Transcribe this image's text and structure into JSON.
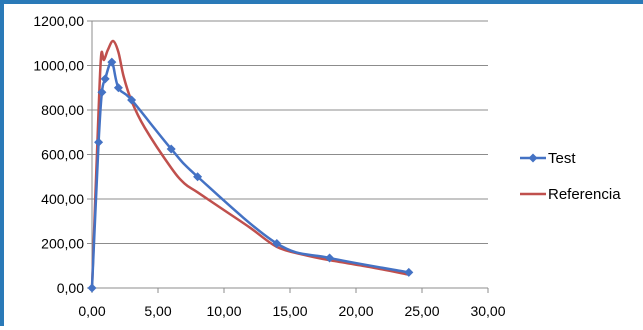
{
  "chart_data": {
    "type": "line",
    "title": "",
    "xlabel": "",
    "ylabel": "",
    "xlim": [
      0,
      30
    ],
    "ylim": [
      0,
      1200
    ],
    "x_ticks": [
      "0,00",
      "5,00",
      "10,00",
      "15,00",
      "20,00",
      "25,00",
      "30,00"
    ],
    "y_ticks": [
      "0,00",
      "200,00",
      "400,00",
      "600,00",
      "800,00",
      "1000,00",
      "1200,00"
    ],
    "grid": "horizontal",
    "legend_position": "right",
    "series": [
      {
        "name": "Test",
        "color": "#4472c4",
        "marker": "diamond",
        "x": [
          0,
          0.5,
          0.75,
          1,
          1.5,
          2,
          3,
          6,
          8,
          14,
          18,
          24
        ],
        "y": [
          0,
          655,
          880,
          940,
          1015,
          900,
          845,
          625,
          500,
          200,
          135,
          70
        ]
      },
      {
        "name": "Referencia",
        "color": "#c0504d",
        "marker": "none",
        "x": [
          0,
          0.5,
          0.7,
          0.9,
          1.2,
          1.6,
          2.0,
          2.4,
          3,
          4,
          6,
          7,
          8,
          10,
          12,
          14,
          16,
          18,
          21,
          24
        ],
        "y": [
          0,
          800,
          1050,
          1025,
          1070,
          1110,
          1060,
          950,
          840,
          720,
          540,
          470,
          430,
          350,
          270,
          185,
          150,
          125,
          95,
          60
        ]
      }
    ]
  }
}
